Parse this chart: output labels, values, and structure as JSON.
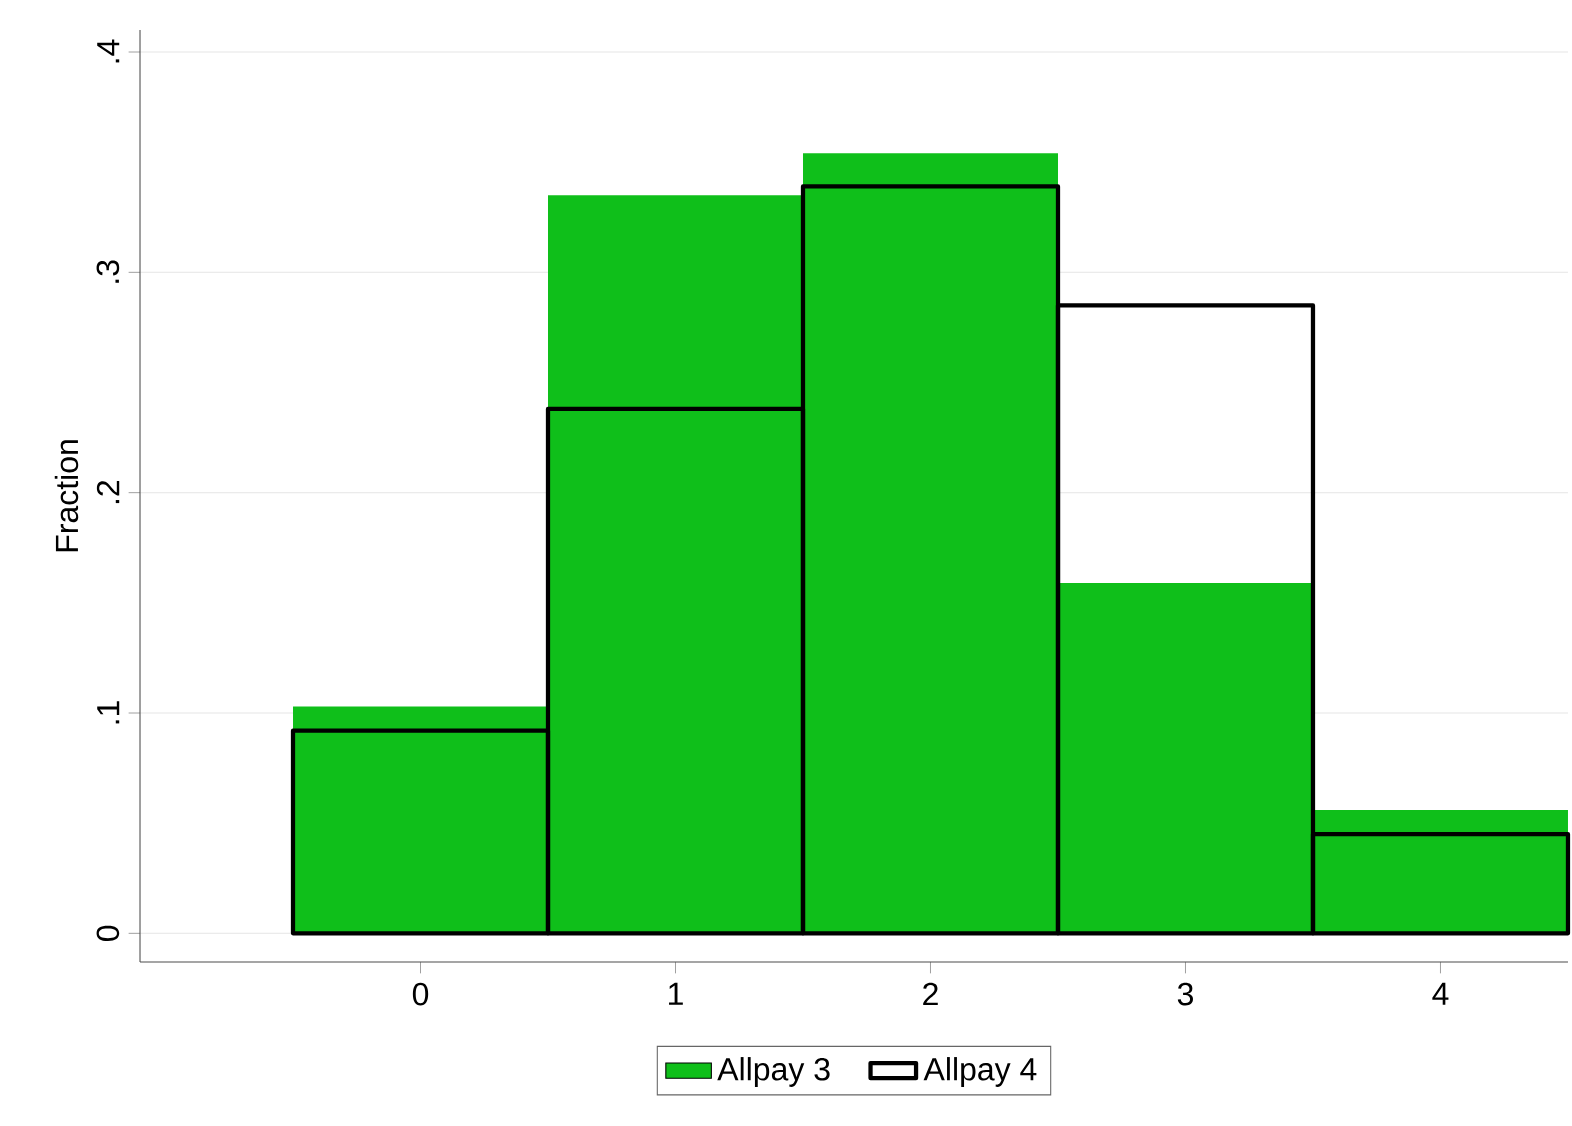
{
  "chart_data": {
    "type": "histogram",
    "ylabel": "Fraction",
    "bins": [
      -0.5,
      0.5,
      1.5,
      2.5,
      3.5,
      4.5
    ],
    "series": [
      {
        "name": "Allpay 3",
        "color": "#0fbf1a",
        "values": [
          0.103,
          0.335,
          0.354,
          0.159,
          0.056
        ]
      },
      {
        "name": "Allpay 4",
        "color": "#000000",
        "values": [
          0.092,
          0.238,
          0.339,
          0.285,
          0.045
        ]
      }
    ],
    "xlim": [
      -1.1,
      4.5
    ],
    "ylim": [
      -0.013,
      0.41
    ],
    "xticks": [
      0,
      1,
      2,
      3,
      4
    ],
    "yticks": [
      {
        "value": 0,
        "label": "0"
      },
      {
        "value": 0.1,
        "label": ".1"
      },
      {
        "value": 0.2,
        "label": ".2"
      },
      {
        "value": 0.3,
        "label": ".3"
      },
      {
        "value": 0.4,
        "label": ".4"
      }
    ],
    "grid": "y",
    "legend": "bottom"
  }
}
